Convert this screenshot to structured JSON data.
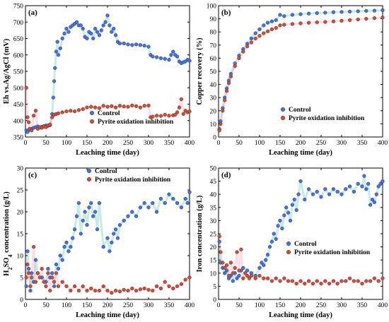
{
  "colors": {
    "control": "#4a72d6",
    "control_edge": "#1f3c8c",
    "inhibition": "#c8503c",
    "inhibition_edge": "#7a2418",
    "control_band": "#5fc9b4",
    "inhibition_band": "#f4a0b8"
  },
  "chart_data": [
    {
      "id": "a",
      "type": "scatter",
      "panel_label": "(a)",
      "xlabel": "Leaching time (day)",
      "ylabel": "Eh vs.Ag/AgCl (mV)",
      "xlim": [
        0,
        400
      ],
      "ylim": [
        350,
        750
      ],
      "xticks": [
        0,
        50,
        100,
        150,
        200,
        250,
        300,
        350,
        400
      ],
      "yticks": [
        350,
        400,
        450,
        500,
        550,
        600,
        650,
        700,
        750
      ],
      "legend": {
        "position": "lower-center",
        "entries": [
          "Control",
          "Pyrite oxidation inhibition"
        ]
      },
      "series": [
        {
          "name": "Control",
          "x": [
            2,
            5,
            10,
            15,
            20,
            25,
            30,
            35,
            40,
            45,
            50,
            55,
            60,
            65,
            68,
            70,
            72,
            75,
            78,
            80,
            85,
            90,
            95,
            100,
            105,
            110,
            115,
            120,
            125,
            130,
            135,
            140,
            145,
            150,
            155,
            160,
            165,
            170,
            175,
            180,
            185,
            190,
            195,
            200,
            205,
            210,
            215,
            220,
            225,
            230,
            240,
            250,
            260,
            270,
            280,
            290,
            300,
            305,
            310,
            320,
            330,
            340,
            350,
            355,
            360,
            365,
            370,
            375,
            380,
            385,
            390,
            395,
            400
          ],
          "y": [
            370,
            365,
            372,
            375,
            378,
            380,
            382,
            379,
            381,
            383,
            385,
            384,
            386,
            420,
            470,
            520,
            560,
            610,
            640,
            600,
            620,
            650,
            665,
            680,
            670,
            685,
            690,
            695,
            700,
            690,
            690,
            680,
            655,
            650,
            670,
            665,
            650,
            680,
            670,
            660,
            675,
            690,
            700,
            720,
            690,
            670,
            680,
            660,
            640,
            635,
            635,
            632,
            630,
            632,
            630,
            628,
            625,
            600,
            595,
            593,
            590,
            588,
            585,
            600,
            610,
            600,
            595,
            580,
            575,
            578,
            580,
            585,
            582
          ]
        },
        {
          "name": "Pyrite oxidation inhibition",
          "x": [
            2,
            5,
            8,
            10,
            15,
            20,
            25,
            30,
            35,
            40,
            45,
            50,
            55,
            60,
            65,
            70,
            75,
            80,
            90,
            100,
            110,
            120,
            130,
            140,
            150,
            160,
            170,
            180,
            190,
            200,
            210,
            220,
            230,
            240,
            250,
            260,
            270,
            280,
            290,
            300,
            305,
            310,
            320,
            330,
            340,
            350,
            360,
            365,
            370,
            375,
            380,
            385,
            390,
            395,
            400
          ],
          "y": [
            500,
            410,
            395,
            375,
            370,
            415,
            430,
            375,
            380,
            378,
            382,
            380,
            385,
            388,
            410,
            418,
            420,
            422,
            425,
            428,
            430,
            428,
            432,
            435,
            440,
            442,
            440,
            438,
            445,
            442,
            444,
            440,
            445,
            443,
            442,
            446,
            444,
            440,
            445,
            446,
            410,
            412,
            415,
            414,
            418,
            415,
            416,
            418,
            425,
            440,
            465,
            420,
            430,
            425,
            428
          ]
        }
      ]
    },
    {
      "id": "b",
      "type": "scatter",
      "panel_label": "(b)",
      "xlabel": "Leaching time (day)",
      "ylabel": "Copper recovery (%)",
      "xlim": [
        0,
        400
      ],
      "ylim": [
        0,
        100
      ],
      "xticks": [
        0,
        50,
        100,
        150,
        200,
        250,
        300,
        350,
        400
      ],
      "yticks": [
        0,
        10,
        20,
        30,
        40,
        50,
        60,
        70,
        80,
        90,
        100
      ],
      "legend": {
        "position": "lower-right",
        "entries": [
          "Control",
          "Pyrite oxidation inhibition"
        ]
      },
      "series": [
        {
          "name": "Control",
          "x": [
            2,
            5,
            10,
            15,
            20,
            25,
            30,
            40,
            50,
            60,
            70,
            80,
            90,
            100,
            110,
            120,
            130,
            140,
            150,
            160,
            180,
            200,
            220,
            240,
            260,
            280,
            300,
            320,
            340,
            360,
            380,
            400
          ],
          "y": [
            6,
            12,
            22,
            30,
            37,
            43,
            48,
            56,
            62,
            67,
            71,
            75,
            79,
            82,
            85,
            87,
            88,
            89,
            93,
            92,
            93,
            93.5,
            94,
            94.3,
            94.6,
            95,
            95.2,
            95.5,
            95.7,
            96,
            96.2,
            96.5
          ]
        },
        {
          "name": "Pyrite oxidation inhibition",
          "x": [
            2,
            5,
            10,
            15,
            20,
            25,
            30,
            40,
            50,
            60,
            70,
            80,
            90,
            100,
            110,
            120,
            130,
            140,
            150,
            160,
            180,
            200,
            220,
            240,
            260,
            280,
            300,
            320,
            340,
            360,
            380,
            400
          ],
          "y": [
            5,
            10,
            20,
            28,
            35,
            41,
            46,
            54,
            60,
            65,
            69,
            72,
            75,
            77,
            79,
            80.5,
            82,
            83,
            85,
            85.5,
            86,
            86.5,
            87,
            87.3,
            87.6,
            88,
            88.5,
            89,
            89.5,
            90,
            90.5,
            91
          ]
        }
      ]
    },
    {
      "id": "c",
      "type": "scatter",
      "panel_label": "(c)",
      "xlabel": "Leaching time (day)",
      "ylabel": "H2SO4 concentration (g/L)",
      "ylabel_parts": {
        "pre": "H",
        "sub1": "2",
        "mid": "SO",
        "sub2": "4",
        "post": " concentration (g/L)"
      },
      "xlim": [
        0,
        400
      ],
      "ylim": [
        0,
        30
      ],
      "xticks": [
        0,
        50,
        100,
        150,
        200,
        250,
        300,
        350,
        400
      ],
      "yticks": [
        0,
        5,
        10,
        15,
        20,
        25,
        30
      ],
      "legend": {
        "position": "top-center",
        "entries": [
          "Control",
          "Pyrite oxidation inhibition"
        ]
      },
      "series": [
        {
          "name": "Control",
          "x": [
            2,
            5,
            8,
            12,
            15,
            20,
            25,
            30,
            40,
            50,
            55,
            60,
            65,
            70,
            75,
            80,
            85,
            90,
            95,
            100,
            105,
            110,
            115,
            120,
            125,
            130,
            135,
            140,
            145,
            150,
            155,
            160,
            165,
            170,
            175,
            180,
            190,
            200,
            205,
            210,
            215,
            220,
            225,
            230,
            240,
            250,
            260,
            270,
            280,
            290,
            300,
            310,
            320,
            330,
            340,
            350,
            360,
            370,
            380,
            390,
            395,
            400
          ],
          "y": [
            3,
            11,
            7,
            2,
            6,
            4,
            9,
            6,
            5,
            4,
            7,
            5,
            6,
            3,
            8,
            7,
            10,
            9,
            12,
            13,
            11,
            12,
            14,
            16,
            19,
            22,
            15,
            18,
            20,
            17,
            21,
            22,
            19,
            20,
            16,
            22,
            12,
            14,
            11,
            13,
            15,
            16,
            14,
            17,
            18,
            19,
            20,
            19,
            21,
            22,
            21,
            22,
            20,
            23,
            22,
            24,
            23,
            22,
            21,
            23,
            22,
            24.5
          ]
        },
        {
          "name": "Pyrite oxidation inhibition",
          "x": [
            2,
            5,
            8,
            12,
            15,
            20,
            25,
            30,
            35,
            40,
            45,
            50,
            55,
            60,
            65,
            70,
            75,
            80,
            90,
            100,
            110,
            120,
            130,
            140,
            150,
            160,
            170,
            180,
            190,
            200,
            210,
            220,
            230,
            240,
            250,
            260,
            270,
            280,
            290,
            300,
            310,
            320,
            330,
            340,
            350,
            360,
            370,
            380,
            390,
            400
          ],
          "y": [
            5,
            8,
            6,
            3,
            5,
            12,
            4,
            6,
            5,
            7,
            4,
            3,
            6,
            2,
            5,
            4,
            6,
            3,
            4,
            3,
            2,
            3,
            2,
            3,
            2,
            2.5,
            2,
            2,
            3,
            2,
            1.5,
            2,
            1.8,
            2.2,
            2,
            2.5,
            2,
            2.3,
            2.5,
            2.2,
            2,
            3,
            2.5,
            4,
            3,
            2.5,
            3,
            3.5,
            4.5,
            5
          ]
        }
      ]
    },
    {
      "id": "d",
      "type": "scatter",
      "panel_label": "(d)",
      "xlabel": "Leaching time (day)",
      "ylabel": "Iron concentration (g/L)",
      "xlim": [
        0,
        400
      ],
      "ylim": [
        0,
        50
      ],
      "xticks": [
        0,
        50,
        100,
        150,
        200,
        250,
        300,
        350,
        400
      ],
      "yticks": [
        0,
        5,
        10,
        15,
        20,
        25,
        30,
        35,
        40,
        45,
        50
      ],
      "legend": {
        "position": "center-right",
        "entries": [
          "Control",
          "Pyrite oxidation inhibition"
        ]
      },
      "series": [
        {
          "name": "Control",
          "x": [
            2,
            5,
            10,
            15,
            20,
            25,
            30,
            35,
            40,
            45,
            50,
            55,
            60,
            70,
            80,
            90,
            100,
            105,
            110,
            115,
            120,
            125,
            130,
            135,
            140,
            145,
            150,
            155,
            160,
            165,
            170,
            175,
            180,
            185,
            190,
            195,
            200,
            210,
            220,
            230,
            240,
            250,
            260,
            270,
            280,
            290,
            300,
            310,
            320,
            330,
            340,
            350,
            355,
            360,
            365,
            370,
            375,
            380,
            385,
            390,
            395,
            400
          ],
          "y": [
            22,
            14,
            12,
            10,
            11,
            8,
            9,
            7,
            10,
            8,
            9,
            11,
            12,
            11,
            10,
            9,
            12,
            14,
            13,
            15,
            17,
            20,
            22,
            25,
            23,
            28,
            30,
            27,
            32,
            35,
            33,
            30,
            36,
            38,
            34,
            40,
            45,
            38,
            42,
            40,
            41,
            39,
            42,
            40,
            42,
            41,
            40,
            42,
            43,
            41,
            44,
            43,
            47,
            42,
            44,
            36,
            38,
            37,
            40,
            43,
            44,
            45
          ]
        },
        {
          "name": "Pyrite oxidation inhibition",
          "x": [
            2,
            5,
            10,
            15,
            20,
            25,
            30,
            35,
            40,
            45,
            50,
            55,
            60,
            65,
            70,
            75,
            80,
            90,
            100,
            110,
            120,
            130,
            140,
            150,
            160,
            170,
            180,
            190,
            200,
            210,
            220,
            230,
            240,
            250,
            260,
            270,
            280,
            290,
            300,
            310,
            320,
            330,
            340,
            350,
            360,
            370,
            380,
            390,
            400
          ],
          "y": [
            24,
            18,
            14,
            12,
            13,
            9,
            14,
            10,
            12,
            18,
            11,
            19,
            8,
            10,
            9,
            8,
            9,
            8,
            9,
            8,
            8,
            7,
            8,
            7,
            8,
            7,
            7,
            6,
            7,
            6,
            7,
            6,
            7,
            6,
            7,
            6,
            7,
            6,
            7,
            7,
            8,
            7,
            7,
            6,
            7,
            7,
            8,
            7,
            8
          ]
        }
      ]
    }
  ]
}
